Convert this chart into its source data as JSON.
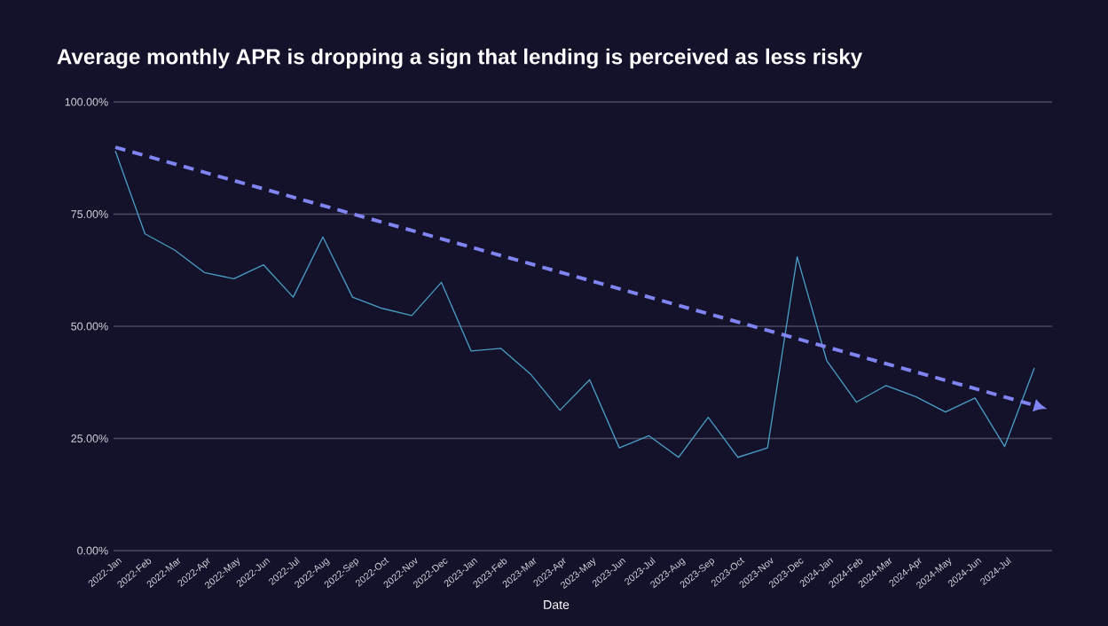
{
  "chart_data": {
    "type": "line",
    "title": "Average monthly APR is dropping a sign that lending is perceived as less risky",
    "xlabel": "Date",
    "categories": [
      "2022-Jan",
      "2022-Feb",
      "2022-Mar",
      "2022-Apr",
      "2022-May",
      "2022-Jun",
      "2022-Jul",
      "2022-Aug",
      "2022-Sep",
      "2022-Oct",
      "2022-Nov",
      "2022-Dec",
      "2023-Jan",
      "2023-Feb",
      "2023-Mar",
      "2023-Apr",
      "2023-May",
      "2023-Jun",
      "2023-Jul",
      "2023-Aug",
      "2023-Sep",
      "2023-Oct",
      "2023-Nov",
      "2023-Dec",
      "2024-Jan",
      "2024-Feb",
      "2024-Mar",
      "2024-Apr",
      "2024-May",
      "2024-Jun",
      "2024-Jul",
      null
    ],
    "series": [
      {
        "color": "#4a9cc4",
        "values": [
          89.1,
          70.6,
          67.0,
          62.0,
          60.6,
          63.7,
          56.5,
          69.9,
          56.5,
          54.0,
          52.4,
          59.8,
          44.5,
          45.1,
          39.4,
          31.3,
          38.1,
          22.9,
          25.6,
          20.8,
          29.7,
          20.8,
          22.9,
          65.5,
          42.3,
          33.1,
          36.8,
          34.3,
          30.9,
          34.0,
          23.2,
          40.7
        ]
      },
      {
        "type": "line",
        "color": "#7f84f0",
        "line_style": "dashed",
        "values": [
          89.9,
          null,
          null,
          null,
          null,
          null,
          null,
          null,
          null,
          null,
          null,
          null,
          null,
          null,
          null,
          null,
          null,
          null,
          null,
          null,
          null,
          null,
          null,
          null,
          null,
          null,
          null,
          null,
          null,
          null,
          null,
          32.4
        ]
      }
    ],
    "ylim": [
      0,
      100
    ],
    "yticks": [
      {
        "value": 0,
        "label": "0.00%"
      },
      {
        "value": 25,
        "label": "25.00%"
      },
      {
        "value": 50,
        "label": "50.00%"
      },
      {
        "value": 75,
        "label": "75.00%"
      },
      {
        "value": 100,
        "label": "100.00%"
      }
    ],
    "grid": "y",
    "marker": "none"
  }
}
